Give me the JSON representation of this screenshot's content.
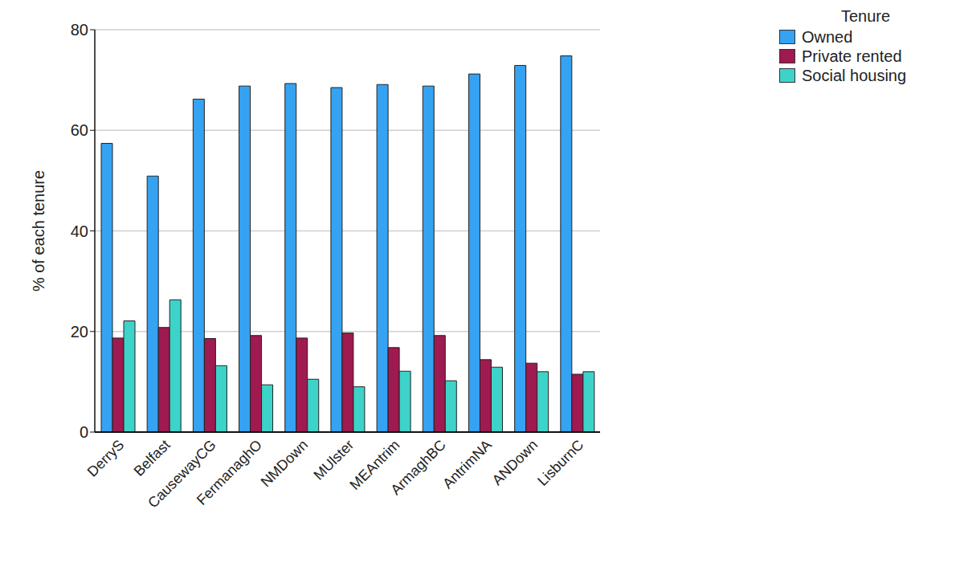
{
  "chart_data": {
    "type": "bar",
    "y_label": "% of each tenure",
    "legend_title": "Tenure",
    "categories": [
      "DerryS",
      "Belfast",
      "CausewayCG",
      "FermanaghO",
      "NMDown",
      "MUlster",
      "MEAntrim",
      "ArmaghBC",
      "AntrimNA",
      "ANDown",
      "LisburnC"
    ],
    "series": [
      {
        "name": "Owned",
        "color": "#35a2f2",
        "values": [
          57.4,
          50.9,
          66.2,
          68.8,
          69.3,
          68.5,
          69.1,
          68.8,
          71.2,
          72.9,
          74.8
        ]
      },
      {
        "name": "Private rented",
        "color": "#9e1a50",
        "values": [
          18.7,
          20.8,
          18.6,
          19.2,
          18.7,
          19.7,
          16.8,
          19.2,
          14.4,
          13.7,
          11.5
        ]
      },
      {
        "name": "Social housing",
        "color": "#3ed3c9",
        "values": [
          22.1,
          26.3,
          13.2,
          9.4,
          10.5,
          9.0,
          12.1,
          10.2,
          12.9,
          12.0,
          12.0
        ]
      }
    ],
    "ylim": [
      0,
      80
    ],
    "yticks": [
      0,
      20,
      40,
      60,
      80
    ],
    "grid": true,
    "legend": "top right"
  }
}
